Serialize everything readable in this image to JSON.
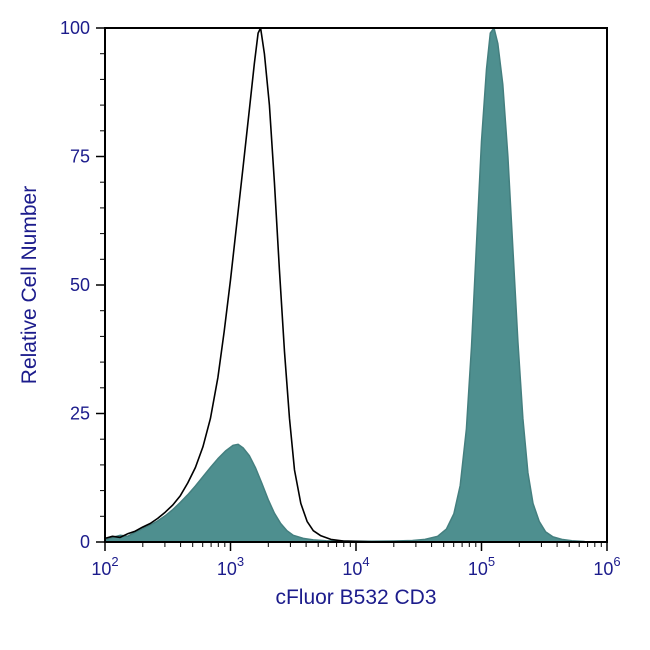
{
  "colors": {
    "background": "#ffffff",
    "frame": "#000000",
    "axis_text": "#1c1c8c",
    "filled_series_fill": "#4e8f8f",
    "filled_series_edge": "#447f7f",
    "open_series_stroke": "#000000"
  },
  "chart_data": {
    "type": "area",
    "title": "",
    "xlabel": "cFluor B532 CD3",
    "ylabel": "Relative Cell Number",
    "x_scale": "log10",
    "xlim_log": [
      2,
      6
    ],
    "ylim": [
      0,
      100
    ],
    "grid": false,
    "legend": "none",
    "x_ticks": [
      {
        "base": "10",
        "exp": 2
      },
      {
        "base": "10",
        "exp": 3
      },
      {
        "base": "10",
        "exp": 4
      },
      {
        "base": "10",
        "exp": 5
      },
      {
        "base": "10",
        "exp": 6
      }
    ],
    "y_ticks": [
      0,
      25,
      50,
      75,
      100
    ],
    "y_minor_step": 5,
    "series": [
      {
        "name": "stained-cd3-filled",
        "style": "filled",
        "stroke": "#447f7f",
        "fill": "#4e8f8f",
        "stroke_width": 1.5,
        "points_logx_y": [
          [
            2.0,
            0.4
          ],
          [
            2.06,
            0.9
          ],
          [
            2.12,
            1.3
          ],
          [
            2.18,
            1.1
          ],
          [
            2.24,
            1.9
          ],
          [
            2.3,
            2.6
          ],
          [
            2.36,
            3.3
          ],
          [
            2.42,
            4.1
          ],
          [
            2.48,
            5.1
          ],
          [
            2.54,
            6.3
          ],
          [
            2.6,
            7.7
          ],
          [
            2.66,
            9.2
          ],
          [
            2.72,
            10.9
          ],
          [
            2.78,
            12.7
          ],
          [
            2.84,
            14.5
          ],
          [
            2.9,
            16.2
          ],
          [
            2.96,
            17.7
          ],
          [
            3.02,
            18.8
          ],
          [
            3.06,
            19.0
          ],
          [
            3.1,
            18.3
          ],
          [
            3.15,
            16.8
          ],
          [
            3.2,
            14.4
          ],
          [
            3.25,
            11.4
          ],
          [
            3.3,
            8.3
          ],
          [
            3.35,
            5.6
          ],
          [
            3.4,
            3.6
          ],
          [
            3.45,
            2.2
          ],
          [
            3.5,
            1.3
          ],
          [
            3.58,
            0.7
          ],
          [
            3.66,
            0.4
          ],
          [
            3.76,
            0.25
          ],
          [
            3.9,
            0.2
          ],
          [
            4.1,
            0.15
          ],
          [
            4.3,
            0.2
          ],
          [
            4.45,
            0.3
          ],
          [
            4.55,
            0.5
          ],
          [
            4.65,
            1.1
          ],
          [
            4.72,
            2.5
          ],
          [
            4.78,
            5.5
          ],
          [
            4.83,
            11.0
          ],
          [
            4.88,
            22.0
          ],
          [
            4.92,
            38.0
          ],
          [
            4.96,
            58.0
          ],
          [
            5.0,
            78.0
          ],
          [
            5.04,
            92.0
          ],
          [
            5.07,
            99.0
          ],
          [
            5.1,
            100.0
          ],
          [
            5.13,
            97.0
          ],
          [
            5.17,
            89.0
          ],
          [
            5.21,
            75.0
          ],
          [
            5.25,
            57.0
          ],
          [
            5.29,
            39.0
          ],
          [
            5.33,
            24.0
          ],
          [
            5.37,
            13.5
          ],
          [
            5.41,
            7.5
          ],
          [
            5.46,
            4.0
          ],
          [
            5.51,
            2.0
          ],
          [
            5.57,
            1.0
          ],
          [
            5.64,
            0.5
          ],
          [
            5.72,
            0.25
          ],
          [
            5.82,
            0.1
          ]
        ]
      },
      {
        "name": "unstained-control-open",
        "style": "open",
        "stroke": "#000000",
        "fill": "none",
        "stroke_width": 1.6,
        "points_logx_y": [
          [
            2.0,
            0.7
          ],
          [
            2.06,
            1.1
          ],
          [
            2.12,
            0.9
          ],
          [
            2.18,
            1.6
          ],
          [
            2.24,
            2.1
          ],
          [
            2.3,
            2.9
          ],
          [
            2.36,
            3.6
          ],
          [
            2.42,
            4.6
          ],
          [
            2.48,
            5.8
          ],
          [
            2.54,
            7.2
          ],
          [
            2.6,
            9.0
          ],
          [
            2.66,
            11.5
          ],
          [
            2.72,
            14.5
          ],
          [
            2.78,
            18.5
          ],
          [
            2.84,
            24.0
          ],
          [
            2.9,
            32.0
          ],
          [
            2.95,
            41.0
          ],
          [
            3.0,
            51.0
          ],
          [
            3.05,
            62.0
          ],
          [
            3.1,
            73.0
          ],
          [
            3.15,
            84.0
          ],
          [
            3.19,
            93.0
          ],
          [
            3.22,
            99.0
          ],
          [
            3.24,
            100.0
          ],
          [
            3.27,
            95.0
          ],
          [
            3.31,
            85.0
          ],
          [
            3.35,
            70.0
          ],
          [
            3.39,
            53.0
          ],
          [
            3.43,
            37.0
          ],
          [
            3.47,
            24.0
          ],
          [
            3.51,
            14.0
          ],
          [
            3.56,
            7.5
          ],
          [
            3.61,
            4.0
          ],
          [
            3.66,
            2.2
          ],
          [
            3.72,
            1.2
          ],
          [
            3.8,
            0.5
          ],
          [
            3.9,
            0.2
          ],
          [
            4.05,
            0.1
          ],
          [
            4.2,
            0.0
          ]
        ]
      }
    ]
  }
}
